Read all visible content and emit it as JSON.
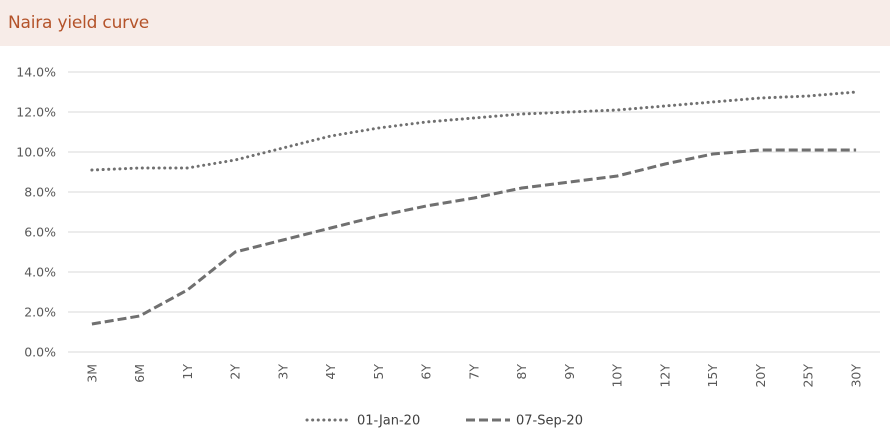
{
  "title": "Naira yield curve",
  "colors": {
    "title_bg": "#f7ece8",
    "title_text": "#b4532a",
    "series": "#707070",
    "grid": "#d9d9d9"
  },
  "chart_data": {
    "type": "line",
    "title": "Naira yield curve",
    "xlabel": "",
    "ylabel": "",
    "categories": [
      "3M",
      "6M",
      "1Y",
      "2Y",
      "3Y",
      "4Y",
      "5Y",
      "6Y",
      "7Y",
      "8Y",
      "9Y",
      "10Y",
      "12Y",
      "15Y",
      "20Y",
      "25Y",
      "30Y"
    ],
    "ylim": [
      0,
      14
    ],
    "ytick_labels": [
      "0.0%",
      "2.0%",
      "4.0%",
      "6.0%",
      "8.0%",
      "10.0%",
      "12.0%",
      "14.0%"
    ],
    "grid": "horizontal",
    "legend_position": "bottom",
    "series": [
      {
        "name": "01-Jan-20",
        "style": "dotted",
        "values": [
          9.1,
          9.2,
          9.2,
          9.6,
          10.2,
          10.8,
          11.2,
          11.5,
          11.7,
          11.9,
          12.0,
          12.1,
          12.3,
          12.5,
          12.7,
          12.8,
          13.0
        ]
      },
      {
        "name": "07-Sep-20",
        "style": "dashed",
        "values": [
          1.4,
          1.8,
          3.1,
          5.0,
          5.6,
          6.2,
          6.8,
          7.3,
          7.7,
          8.2,
          8.5,
          8.8,
          9.4,
          9.9,
          10.1,
          10.1,
          10.1
        ]
      }
    ]
  }
}
